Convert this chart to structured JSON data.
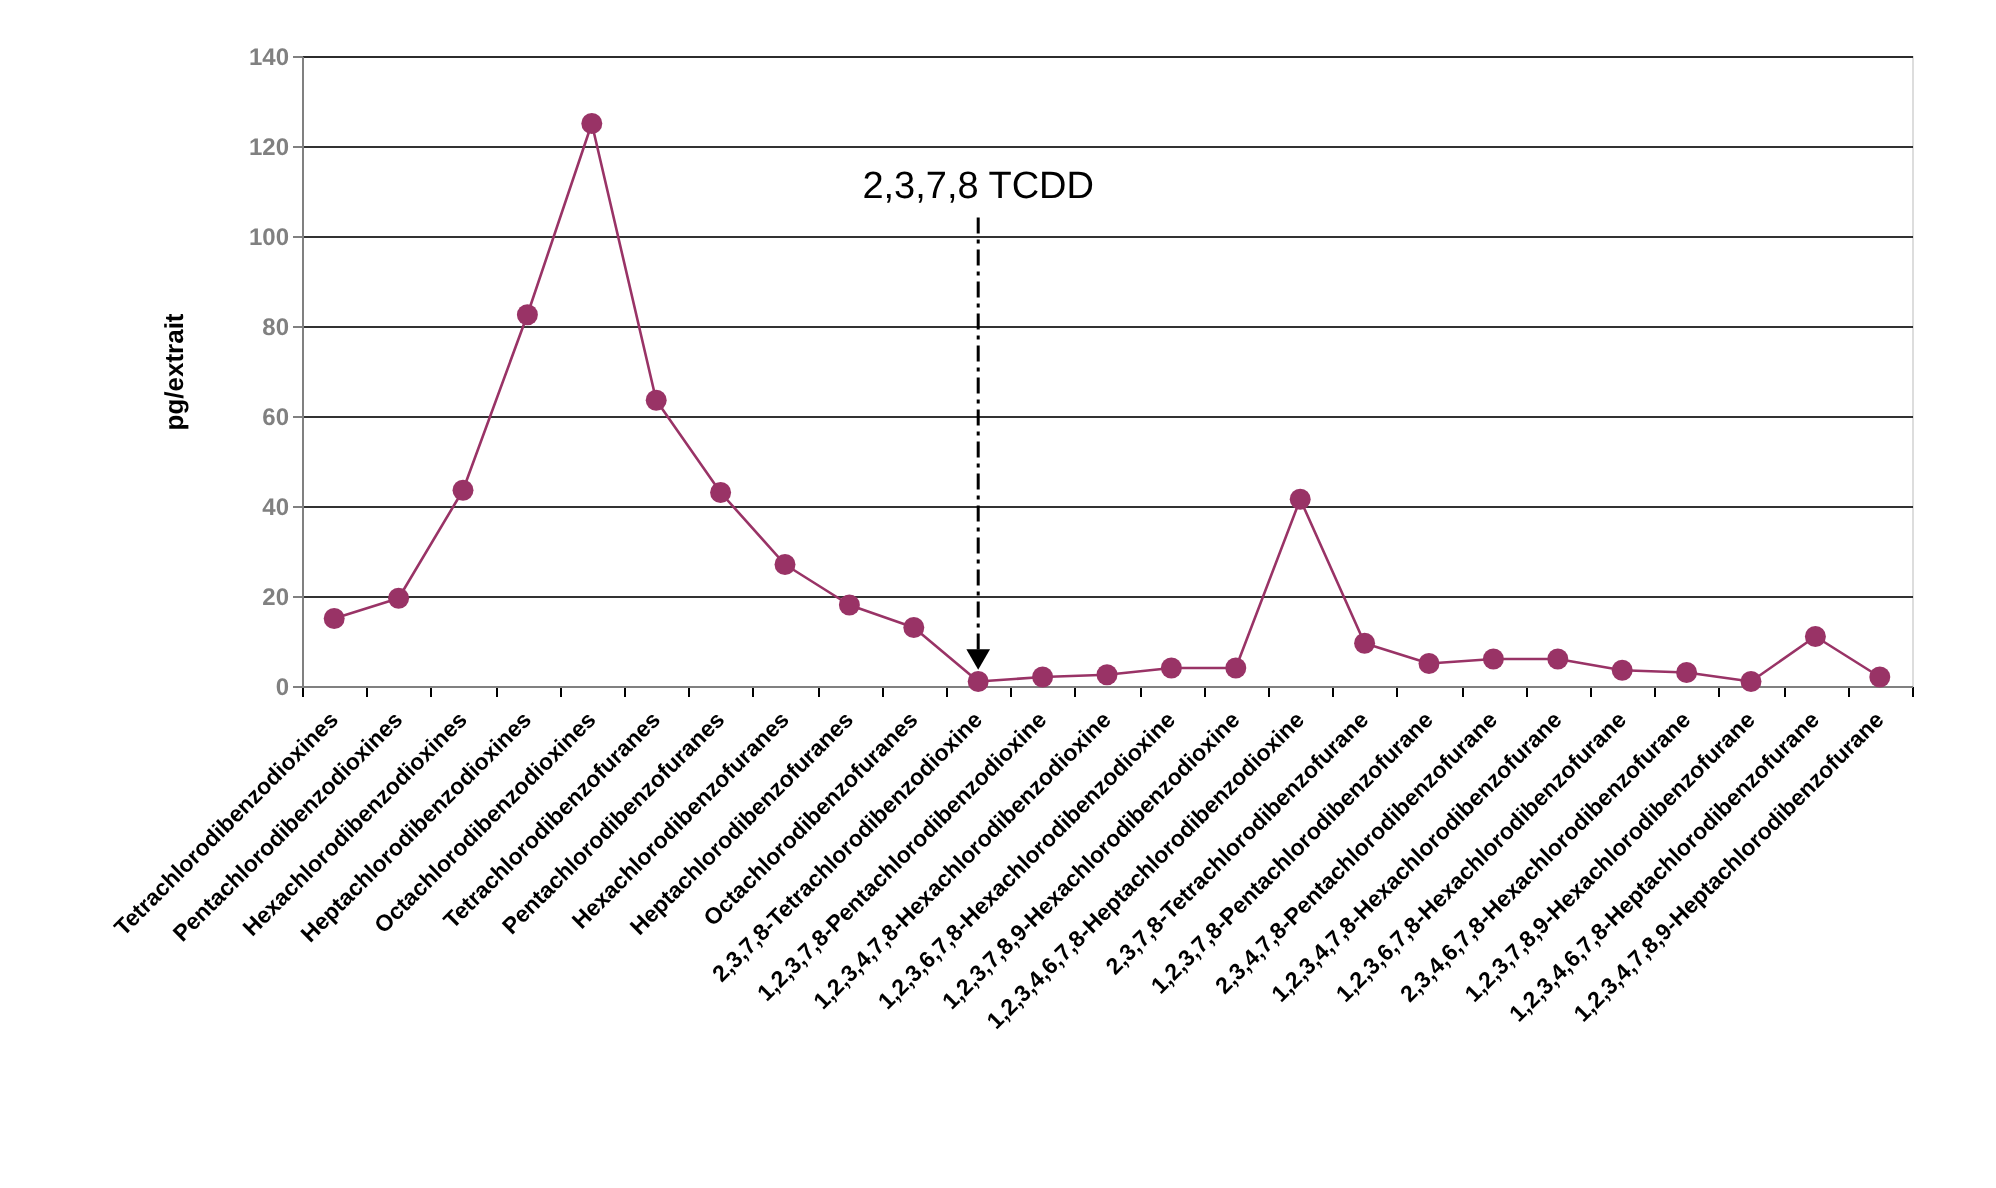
{
  "chart_data": {
    "type": "line",
    "ylabel": "pg/extrait",
    "categories": [
      "Tetrachlorodibenzodioxines",
      "Pentachlorodibenzodioxines",
      "Hexachlorodibenzodioxines",
      "Heptachlorodibenzodioxines",
      "Octachlorodibenzodioxines",
      "Tetrachlorodibenzofuranes",
      "Pentachlorodibenzofuranes",
      "Hexachlorodibenzofuranes",
      "Heptachlorodibenzofuranes",
      "Octachlorodibenzofuranes",
      "2,3,7,8-Tetrachlorodibenzodioxine",
      "1,2,3,7,8-Pentachlorodibenzodioxine",
      "1,2,3,4,7,8-Hexachlorodibenzodioxine",
      "1,2,3,6,7,8-Hexachlorodibenzodioxine",
      "1,2,3,7,8,9-Hexachlorodibenzodioxine",
      "1,2,3,4,6,7,8-Heptachlorodibenzodioxine",
      "2,3,7,8-Tetrachlorodibenzofurane",
      "1,2,3,7,8-Pentachlorodibenzofurane",
      "2,3,4,7,8-Pentachlorodibenzofurane",
      "1,2,3,4,7,8-Hexachlorodibenzofurane",
      "1,2,3,6,7,8-Hexachlorodibenzofurane",
      "2,3,4,6,7,8-Hexachlorodibenzofurane",
      "1,2,3,7,8,9-Hexachlorodibenzofurane",
      "1,2,3,4,6,7,8-Heptachlorodibenzofurane",
      "1,2,3,4,7,8,9-Heptachlorodibenzofurane"
    ],
    "series": [
      {
        "color": "#993366",
        "values": [
          15,
          19.5,
          43.5,
          82.5,
          125,
          63.5,
          43,
          27,
          18,
          13,
          1,
          2,
          2.5,
          4,
          4,
          41.5,
          9.5,
          5,
          6,
          6,
          3.5,
          3,
          1,
          11,
          2
        ]
      }
    ],
    "ylim": [
      0,
      140
    ],
    "yticks": [
      0,
      20,
      40,
      60,
      80,
      100,
      120,
      140
    ],
    "grid": "y",
    "marker": "circle",
    "annotations": [
      "2,3,7,8 TCDD"
    ]
  }
}
